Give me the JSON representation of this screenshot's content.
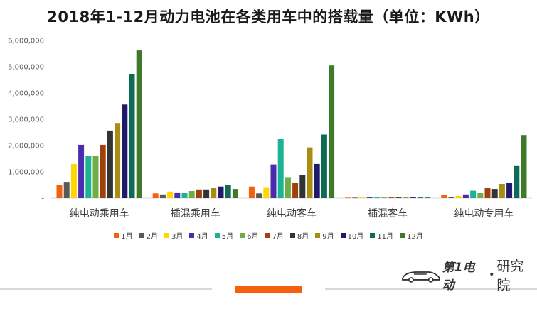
{
  "title": "2018年1-12月动力电池在各类用车中的搭载量（单位：KWh）",
  "brand": {
    "name": "第1电动",
    "separator": "•",
    "sub": "研究院"
  },
  "colors": {
    "accent": "#f5600f",
    "axis": "#d9d9d9",
    "text": "#595959"
  },
  "chart_data": {
    "type": "bar",
    "title": "2018年1-12月动力电池在各类用车中的搭载量（单位：KWh）",
    "xlabel": "",
    "ylabel": "",
    "ylim": [
      0,
      6000000
    ],
    "yticks": [
      0,
      1000000,
      2000000,
      3000000,
      4000000,
      5000000,
      6000000
    ],
    "ytick_labels": [
      "-",
      "1,000,000",
      "2,000,000",
      "3,000,000",
      "4,000,000",
      "5,000,000",
      "6,000,000"
    ],
    "grid": false,
    "legend_position": "bottom",
    "categories": [
      "纯电动乘用车",
      "插混乘用车",
      "纯电动客车",
      "插混客车",
      "纯电动专用车"
    ],
    "series": [
      {
        "name": "1月",
        "color": "#f5600f",
        "values": [
          500000,
          180000,
          440000,
          20000,
          130000
        ]
      },
      {
        "name": "2月",
        "color": "#595959",
        "values": [
          620000,
          140000,
          180000,
          20000,
          50000
        ]
      },
      {
        "name": "3月",
        "color": "#ffd700",
        "values": [
          1300000,
          250000,
          420000,
          25000,
          80000
        ]
      },
      {
        "name": "4月",
        "color": "#4b2bb0",
        "values": [
          2030000,
          220000,
          1280000,
          25000,
          140000
        ]
      },
      {
        "name": "5月",
        "color": "#1ab394",
        "values": [
          1600000,
          190000,
          2270000,
          25000,
          280000
        ]
      },
      {
        "name": "6月",
        "color": "#70ad47",
        "values": [
          1600000,
          270000,
          800000,
          25000,
          200000
        ]
      },
      {
        "name": "7月",
        "color": "#a0410d",
        "values": [
          2030000,
          330000,
          580000,
          25000,
          380000
        ]
      },
      {
        "name": "8月",
        "color": "#333333",
        "values": [
          2570000,
          330000,
          870000,
          25000,
          350000
        ]
      },
      {
        "name": "9月",
        "color": "#a88d12",
        "values": [
          2860000,
          390000,
          1930000,
          25000,
          540000
        ]
      },
      {
        "name": "10月",
        "color": "#1f1a6b",
        "values": [
          3560000,
          440000,
          1300000,
          25000,
          580000
        ]
      },
      {
        "name": "11月",
        "color": "#0e6b55",
        "values": [
          4730000,
          500000,
          2420000,
          25000,
          1250000
        ]
      },
      {
        "name": "12月",
        "color": "#3d7a2a",
        "values": [
          5620000,
          350000,
          5050000,
          25000,
          2400000
        ]
      }
    ]
  }
}
